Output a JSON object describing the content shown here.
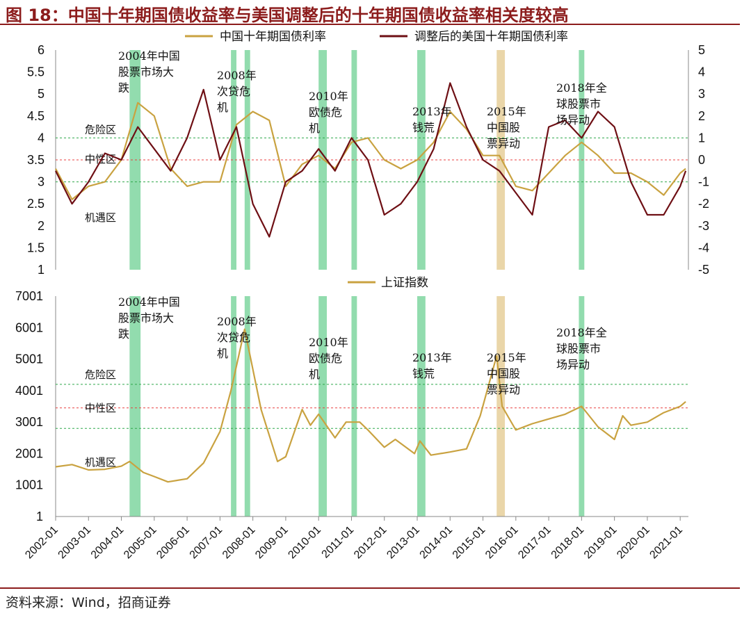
{
  "header": {
    "title": "图 18：中国十年期国债收益率与美国调整后的十年期国债收益率相关度较高"
  },
  "footer": {
    "source": "资料来源：Wind，招商证券"
  },
  "colors": {
    "brand": "#8c1c1c",
    "china_yield": "#c9a240",
    "us_yield": "#6e0f14",
    "sse_index": "#c9a240",
    "green_band": "#7fd6a0",
    "tan_band": "#e6cf9a",
    "danger_line": "#2ea84a",
    "neutral_line": "#e84040",
    "opportunity_line": "#2ea84a"
  },
  "chart_data": [
    {
      "type": "line",
      "series": [
        {
          "name": "中国十年期国债利率",
          "axis": "left",
          "x": [
            "2002-01",
            "2002-07",
            "2003-01",
            "2003-07",
            "2004-01",
            "2004-07",
            "2005-01",
            "2005-07",
            "2006-01",
            "2006-07",
            "2007-01",
            "2007-07",
            "2008-01",
            "2008-07",
            "2009-01",
            "2009-07",
            "2010-01",
            "2010-07",
            "2011-01",
            "2011-07",
            "2012-01",
            "2012-07",
            "2013-01",
            "2013-07",
            "2014-01",
            "2014-07",
            "2015-01",
            "2015-07",
            "2016-01",
            "2016-07",
            "2017-01",
            "2017-07",
            "2018-01",
            "2018-07",
            "2019-01",
            "2019-07",
            "2020-01",
            "2020-07",
            "2021-01",
            "2021-03"
          ],
          "values": [
            3.3,
            2.6,
            2.9,
            3.0,
            3.5,
            4.8,
            4.5,
            3.3,
            2.9,
            3.0,
            3.0,
            4.3,
            4.6,
            4.4,
            2.9,
            3.4,
            3.6,
            3.3,
            3.9,
            4.0,
            3.5,
            3.3,
            3.5,
            3.9,
            4.6,
            4.2,
            3.6,
            3.6,
            2.9,
            2.8,
            3.2,
            3.6,
            3.9,
            3.6,
            3.2,
            3.2,
            3.0,
            2.7,
            3.2,
            3.3
          ]
        },
        {
          "name": "调整后的美国十年期国债利率",
          "axis": "right",
          "x": [
            "2002-01",
            "2002-07",
            "2003-01",
            "2003-07",
            "2004-01",
            "2004-07",
            "2005-01",
            "2005-07",
            "2006-01",
            "2006-07",
            "2007-01",
            "2007-07",
            "2008-01",
            "2008-07",
            "2009-01",
            "2009-07",
            "2010-01",
            "2010-07",
            "2011-01",
            "2011-07",
            "2012-01",
            "2012-07",
            "2013-01",
            "2013-07",
            "2014-01",
            "2014-07",
            "2015-01",
            "2015-07",
            "2016-01",
            "2016-07",
            "2017-01",
            "2017-07",
            "2018-01",
            "2018-07",
            "2019-01",
            "2019-07",
            "2020-01",
            "2020-07",
            "2021-01",
            "2021-03"
          ],
          "values": [
            -0.5,
            -2.0,
            -1.0,
            0.3,
            0.0,
            1.5,
            0.5,
            -0.5,
            1.0,
            3.2,
            0.0,
            1.5,
            -2.0,
            -3.5,
            -1.0,
            -0.5,
            0.5,
            -0.5,
            1.0,
            0.0,
            -2.5,
            -2.0,
            -1.0,
            0.5,
            3.5,
            1.5,
            0.0,
            -0.5,
            -1.5,
            -2.5,
            1.5,
            1.8,
            1.0,
            2.2,
            1.5,
            -1.0,
            -2.5,
            -2.5,
            -1.2,
            -0.5
          ]
        }
      ],
      "ylim_left": [
        1,
        6
      ],
      "ylim_right": [
        -5,
        5
      ],
      "yticks_left": [
        "6",
        "5.5",
        "5",
        "4.5",
        "4",
        "3.5",
        "3",
        "2.5",
        "2",
        "1.5",
        "1"
      ],
      "yticks_right": [
        "5",
        "4",
        "3",
        "2",
        "1",
        "0",
        "-1",
        "-2",
        "-3",
        "-4",
        "-5"
      ],
      "zones": {
        "danger": "危险区",
        "neutral": "中性区",
        "opportunity": "机遇区"
      },
      "zone_lines_right_axis": {
        "danger": 1,
        "neutral": 0,
        "opportunity": -1
      },
      "annotations": [
        [
          "2004年中国",
          "股票市场大",
          "跌"
        ],
        [
          "2008年",
          "次贷危",
          "机"
        ],
        [
          "2010年",
          "欧债危",
          "机"
        ],
        [
          "2013年",
          "钱荒"
        ],
        [
          "2015年",
          "中国股",
          "票异动"
        ],
        [
          "2018年全",
          "球股票市",
          "场异动"
        ]
      ]
    },
    {
      "type": "line",
      "series": [
        {
          "name": "上证指数",
          "x": [
            "2002-01",
            "2002-07",
            "2003-01",
            "2003-07",
            "2004-01",
            "2004-04",
            "2004-09",
            "2005-01",
            "2005-06",
            "2006-01",
            "2006-07",
            "2007-01",
            "2007-05",
            "2007-10",
            "2008-04",
            "2008-10",
            "2009-01",
            "2009-07",
            "2009-10",
            "2010-01",
            "2010-07",
            "2010-11",
            "2011-04",
            "2011-07",
            "2012-01",
            "2012-05",
            "2012-12",
            "2013-02",
            "2013-06",
            "2014-01",
            "2014-07",
            "2014-12",
            "2015-06",
            "2015-08",
            "2016-01",
            "2016-07",
            "2017-01",
            "2017-07",
            "2018-01",
            "2018-07",
            "2019-01",
            "2019-04",
            "2019-07",
            "2020-01",
            "2020-07",
            "2021-01",
            "2021-03"
          ],
          "values": [
            1580,
            1650,
            1480,
            1500,
            1600,
            1750,
            1400,
            1270,
            1100,
            1200,
            1700,
            2700,
            4000,
            5950,
            3400,
            1750,
            1900,
            3400,
            2900,
            3250,
            2500,
            3000,
            3000,
            2750,
            2200,
            2450,
            2000,
            2400,
            1950,
            2050,
            2150,
            3200,
            5100,
            3500,
            2750,
            2950,
            3100,
            3250,
            3500,
            2850,
            2450,
            3200,
            2900,
            3000,
            3300,
            3500,
            3650
          ]
        }
      ],
      "ylim": [
        1,
        7001
      ],
      "yticks": [
        "7001",
        "6001",
        "5001",
        "4001",
        "3001",
        "2001",
        "1001",
        "1"
      ],
      "zones": {
        "danger": "危险区",
        "neutral": "中性区",
        "opportunity": "机遇区"
      },
      "zone_lines": {
        "danger": 4200,
        "neutral": 3450,
        "opportunity": 2800
      },
      "annotations": [
        [
          "2004年中国",
          "股票市场大",
          "跌"
        ],
        [
          "2008年",
          "次贷危",
          "机"
        ],
        [
          "2010年",
          "欧债危",
          "机"
        ],
        [
          "2013年",
          "钱荒"
        ],
        [
          "2015年",
          "中国股",
          "票异动"
        ],
        [
          "2018年全",
          "球股票市",
          "场异动"
        ]
      ]
    }
  ],
  "x_axis": {
    "ticks": [
      "2002-01",
      "2003-01",
      "2004-01",
      "2005-01",
      "2006-01",
      "2007-01",
      "2008-01",
      "2009-01",
      "2010-01",
      "2011-01",
      "2012-01",
      "2013-01",
      "2014-01",
      "2015-01",
      "2016-01",
      "2017-01",
      "2018-01",
      "2019-01",
      "2020-01",
      "2021-01"
    ]
  },
  "bands": [
    {
      "start": "2004-04",
      "end": "2004-08",
      "color": "green"
    },
    {
      "start": "2007-05",
      "end": "2007-07",
      "color": "green"
    },
    {
      "start": "2007-10",
      "end": "2007-12",
      "color": "green"
    },
    {
      "start": "2010-01",
      "end": "2010-04",
      "color": "green"
    },
    {
      "start": "2011-01",
      "end": "2011-03",
      "color": "green"
    },
    {
      "start": "2013-01",
      "end": "2013-04",
      "color": "green"
    },
    {
      "start": "2015-06",
      "end": "2015-09",
      "color": "tan"
    },
    {
      "start": "2017-12",
      "end": "2018-02",
      "color": "green"
    }
  ]
}
